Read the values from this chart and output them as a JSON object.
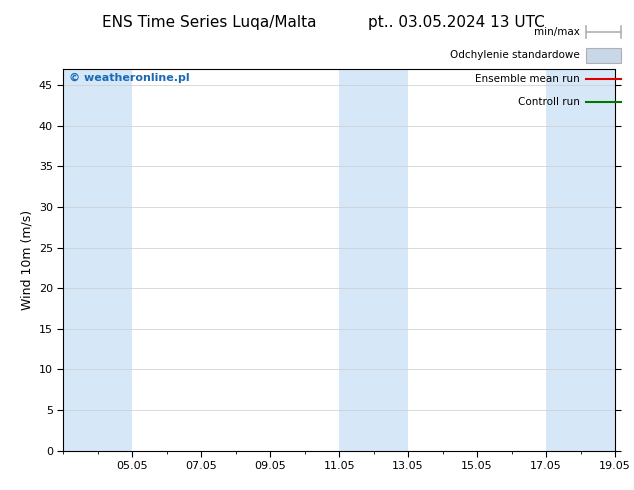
{
  "title_left": "ENS Time Series Luqa/Malta",
  "title_right": "pt.. 03.05.2024 13 UTC",
  "ylabel": "Wind 10m (m/s)",
  "watermark": "© weatheronline.pl",
  "ylim": [
    0,
    47
  ],
  "yticks": [
    0,
    5,
    10,
    15,
    20,
    25,
    30,
    35,
    40,
    45
  ],
  "xtick_labels": [
    "05.05",
    "07.05",
    "09.05",
    "11.05",
    "13.05",
    "15.05",
    "17.05",
    "19.05"
  ],
  "xtick_positions": [
    2,
    4,
    6,
    8,
    10,
    12,
    14,
    16
  ],
  "shaded_ranges": [
    [
      0,
      2
    ],
    [
      8,
      10
    ],
    [
      14,
      16
    ]
  ],
  "shaded_color": "#d6e8f7",
  "background_color": "#ffffff",
  "plot_bg_color": "#ffffff",
  "grid_color": "#cccccc",
  "spine_color": "#000000",
  "title_fontsize": 11,
  "label_fontsize": 9,
  "tick_fontsize": 8,
  "watermark_color": "#1a6ab5",
  "legend_minmax_color": "#b0b0b0",
  "legend_std_color": "#c8d8e8",
  "legend_mean_color": "#dd0000",
  "legend_ctrl_color": "#007700"
}
